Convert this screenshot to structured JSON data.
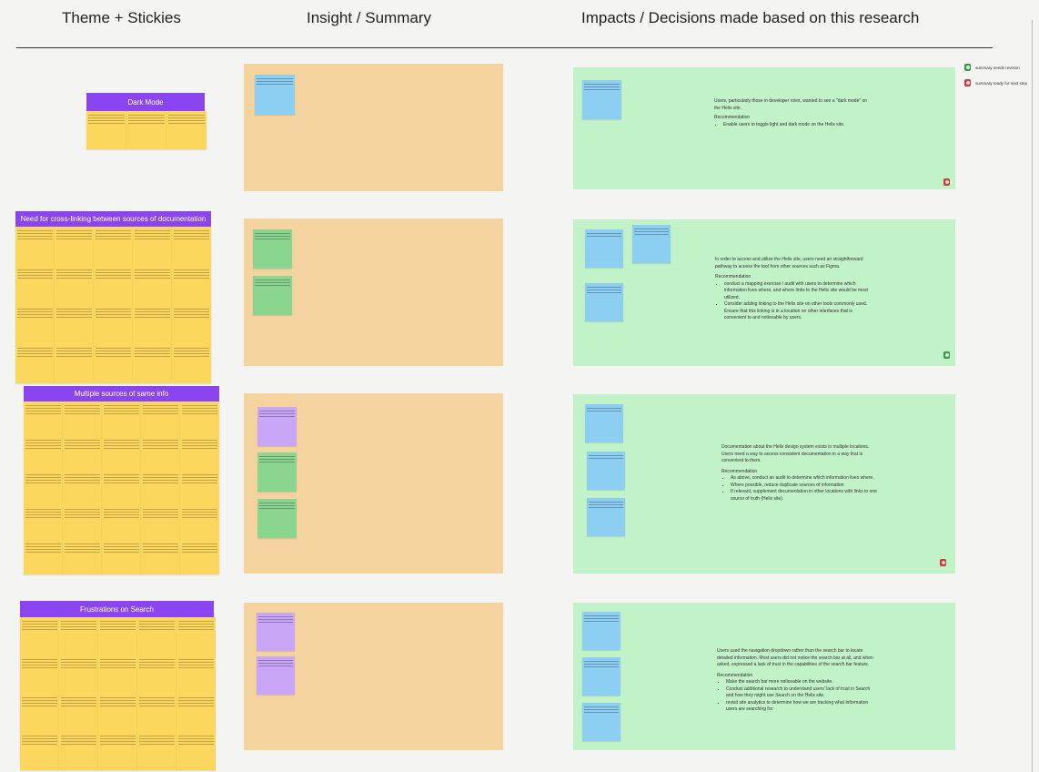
{
  "headers": {
    "theme": "Theme + Stickies",
    "insight": "Insight / Summary",
    "impact": "Impacts / Decisions made based on this research"
  },
  "legend": [
    {
      "label": "summary needs revision",
      "color": "#3c9a48"
    },
    {
      "label": "summary ready for next step",
      "color": "#cc3b3b"
    }
  ],
  "themes": [
    {
      "title": "Dark Mode",
      "summary": {
        "lead": "Users, particularly those in developer roles, wanted to see a \"dark mode\" on the Helix site.",
        "rec_heading": "Recommendation",
        "bullets": [
          "Enable users to toggle light and dark mode on the Helix site."
        ]
      }
    },
    {
      "title": "Need for cross-linking between sources of documentation",
      "summary": {
        "lead": "In order to access and utilize the Helix site, users need an straightforward pathway to access the tool from other sources such as Figma.",
        "rec_heading": "Recommendation",
        "bullets": [
          "conduct a mapping exercise / audit with users to determine which information lives where, and where links to the Helix site would be most utilized.",
          "Consider adding linking to the Helix site on other tools commonly used. Ensure that this linking is in a location on other interfaces that is convenient to and noticeable by users."
        ]
      }
    },
    {
      "title": "Multiple sources of same info",
      "summary": {
        "lead": "Documentation about the Helix design system exists in multiple locations. Users need a way to access consistent documentation in a way that is convenient to them.",
        "rec_heading": "Recommendation",
        "bullets": [
          "As above, conduct an audit to determine which information lives where.",
          "Where possible, reduce duplicate sources of information",
          "If relevant, supplement documentation in other locations with links to one source of truth (Helix site)."
        ]
      }
    },
    {
      "title": "Frustrations on Search",
      "summary": {
        "lead": "Users used the navigation dropdown rather than the search bar to locate detailed information. Most users did not notice the search bar at all, and when asked, expressed a lack of trust in the capabilities of the search bar feature.",
        "rec_heading": "Recommendation",
        "bullets": [
          "Make the search bar more noticeable on the website.",
          "Conduct additional research to understand users' lack of trust in Search and how they might use Search on the Helix site.",
          "revisit site analytics to determine how we are tracking what information users are searching for"
        ]
      }
    }
  ]
}
